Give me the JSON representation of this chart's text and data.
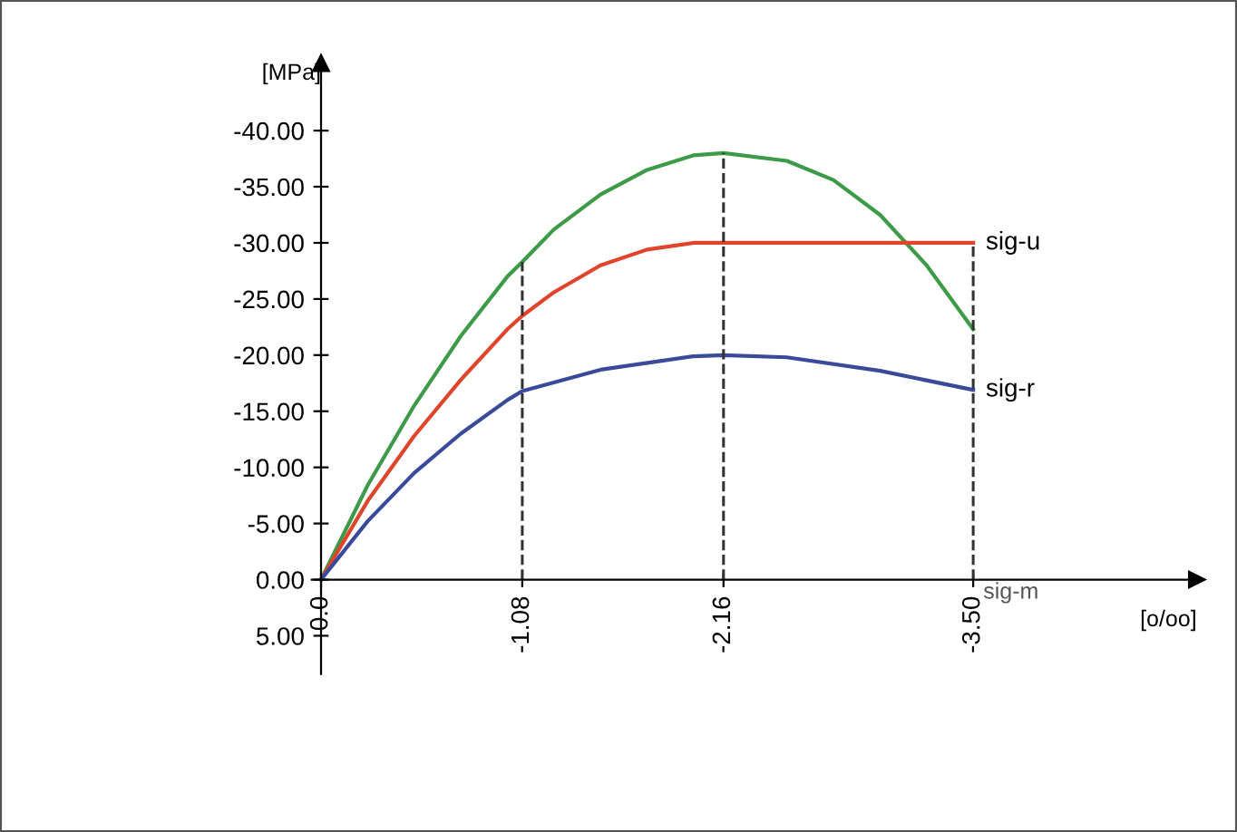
{
  "chart_data": {
    "type": "line",
    "xlabel": "[o/oo]",
    "ylabel": "[MPa]",
    "annotations": [
      "sig-m"
    ],
    "xlim": [
      0.05,
      -4.7
    ],
    "ylim": [
      8.4,
      -46
    ],
    "xticks": [
      {
        "value": 0,
        "label": "0.0"
      },
      {
        "value": -1.08,
        "label": "-1.08"
      },
      {
        "value": -2.16,
        "label": "-2.16"
      },
      {
        "value": -3.5,
        "label": "-3.50"
      }
    ],
    "yticks": [
      {
        "value": 5,
        "label": "5.00"
      },
      {
        "value": 0,
        "label": "0.00"
      },
      {
        "value": -5,
        "label": "-5.00"
      },
      {
        "value": -10,
        "label": "-10.00"
      },
      {
        "value": -15,
        "label": "-15.00"
      },
      {
        "value": -20,
        "label": "-20.00"
      },
      {
        "value": -25,
        "label": "-25.00"
      },
      {
        "value": -30,
        "label": "-30.00"
      },
      {
        "value": -35,
        "label": "-35.00"
      },
      {
        "value": -40,
        "label": "-40.00"
      }
    ],
    "grid": false,
    "legend": false,
    "marker": "none",
    "line_style": "solid",
    "ref_lines": [
      {
        "axis": "x",
        "value": -1.08,
        "line_style": "dashed",
        "color": "#333333"
      },
      {
        "axis": "x",
        "value": -2.16,
        "line_style": "dashed",
        "color": "#333333"
      },
      {
        "axis": "x",
        "value": -3.5,
        "line_style": "dashed",
        "color": "#333333"
      }
    ],
    "series": [
      {
        "color": "#3c9a48",
        "x": [
          0,
          -0.25,
          -0.5,
          -0.75,
          -1.0,
          -1.08,
          -1.25,
          -1.5,
          -1.75,
          -2.0,
          -2.16,
          -2.5,
          -2.75,
          -3.0,
          -3.25,
          -3.5
        ],
        "values": [
          0,
          -8.4,
          -15.5,
          -21.7,
          -27.0,
          -28.3,
          -31.2,
          -34.3,
          -36.5,
          -37.8,
          -38.0,
          -37.3,
          -35.6,
          -32.5,
          -28.0,
          -22.3
        ]
      },
      {
        "name": "sig-u",
        "color": "#e0442a",
        "x": [
          0,
          -0.25,
          -0.5,
          -0.75,
          -1.0,
          -1.08,
          -1.25,
          -1.5,
          -1.75,
          -2.0,
          -2.16,
          -3.5
        ],
        "values": [
          0,
          -7.0,
          -12.8,
          -17.8,
          -22.3,
          -23.5,
          -25.6,
          -28.0,
          -29.4,
          -30.0,
          -30.0,
          -30.0
        ]
      },
      {
        "name": "sig-r",
        "color": "#3a4a9a",
        "x": [
          0,
          -0.25,
          -0.5,
          -0.75,
          -1.0,
          -1.08,
          -1.5,
          -2.0,
          -2.16,
          -2.5,
          -3.0,
          -3.5
        ],
        "values": [
          0,
          -5.2,
          -9.5,
          -13.0,
          -16.0,
          -16.8,
          -18.7,
          -19.9,
          -20.0,
          -19.8,
          -18.6,
          -16.9
        ]
      }
    ]
  }
}
